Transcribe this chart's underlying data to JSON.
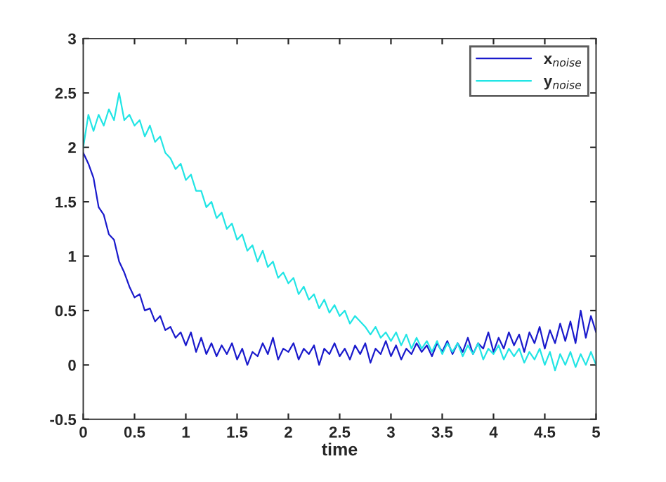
{
  "chart_data": {
    "type": "line",
    "xlabel": "time",
    "x": [
      0,
      0.05,
      0.1,
      0.15,
      0.2,
      0.25,
      0.3,
      0.35,
      0.4,
      0.45,
      0.5,
      0.55,
      0.6,
      0.65,
      0.7,
      0.75,
      0.8,
      0.85,
      0.9,
      0.95,
      1,
      1.05,
      1.1,
      1.15,
      1.2,
      1.25,
      1.3,
      1.35,
      1.4,
      1.45,
      1.5,
      1.55,
      1.6,
      1.65,
      1.7,
      1.75,
      1.8,
      1.85,
      1.9,
      1.95,
      2,
      2.05,
      2.1,
      2.15,
      2.2,
      2.25,
      2.3,
      2.35,
      2.4,
      2.45,
      2.5,
      2.55,
      2.6,
      2.65,
      2.7,
      2.75,
      2.8,
      2.85,
      2.9,
      2.95,
      3,
      3.05,
      3.1,
      3.15,
      3.2,
      3.25,
      3.3,
      3.35,
      3.4,
      3.45,
      3.5,
      3.55,
      3.6,
      3.65,
      3.7,
      3.75,
      3.8,
      3.85,
      3.9,
      3.95,
      4,
      4.05,
      4.1,
      4.15,
      4.2,
      4.25,
      4.3,
      4.35,
      4.4,
      4.45,
      4.5,
      4.55,
      4.6,
      4.65,
      4.7,
      4.75,
      4.8,
      4.85,
      4.9,
      4.95,
      5
    ],
    "series": [
      {
        "name": "x$_{noise}$",
        "color": "#1a1acc",
        "values": [
          1.95,
          1.85,
          1.72,
          1.45,
          1.38,
          1.2,
          1.15,
          0.95,
          0.85,
          0.72,
          0.62,
          0.65,
          0.5,
          0.52,
          0.4,
          0.45,
          0.32,
          0.35,
          0.25,
          0.3,
          0.18,
          0.3,
          0.12,
          0.25,
          0.1,
          0.2,
          0.08,
          0.18,
          0.1,
          0.2,
          0.05,
          0.15,
          0.0,
          0.12,
          0.08,
          0.2,
          0.1,
          0.25,
          0.05,
          0.15,
          0.12,
          0.2,
          0.05,
          0.15,
          0.1,
          0.18,
          0.0,
          0.15,
          0.1,
          0.2,
          0.08,
          0.15,
          0.05,
          0.18,
          0.1,
          0.2,
          0.02,
          0.15,
          0.1,
          0.22,
          0.08,
          0.18,
          0.05,
          0.15,
          0.1,
          0.2,
          0.12,
          0.18,
          0.08,
          0.2,
          0.12,
          0.22,
          0.1,
          0.2,
          0.12,
          0.25,
          0.1,
          0.2,
          0.15,
          0.3,
          0.12,
          0.25,
          0.15,
          0.3,
          0.18,
          0.28,
          0.12,
          0.3,
          0.2,
          0.35,
          0.15,
          0.32,
          0.2,
          0.38,
          0.22,
          0.4,
          0.2,
          0.5,
          0.25,
          0.45,
          0.3
        ]
      },
      {
        "name": "y$_{noise}$",
        "color": "#22e5e5",
        "values": [
          2.0,
          2.3,
          2.15,
          2.3,
          2.2,
          2.35,
          2.25,
          2.5,
          2.25,
          2.3,
          2.2,
          2.25,
          2.1,
          2.2,
          2.05,
          2.1,
          1.95,
          1.9,
          1.8,
          1.85,
          1.7,
          1.75,
          1.6,
          1.6,
          1.45,
          1.5,
          1.35,
          1.4,
          1.25,
          1.3,
          1.15,
          1.2,
          1.05,
          1.1,
          0.95,
          1.05,
          0.9,
          0.95,
          0.8,
          0.85,
          0.75,
          0.8,
          0.65,
          0.72,
          0.6,
          0.65,
          0.52,
          0.6,
          0.48,
          0.55,
          0.45,
          0.5,
          0.38,
          0.45,
          0.4,
          0.35,
          0.28,
          0.35,
          0.25,
          0.3,
          0.22,
          0.3,
          0.18,
          0.28,
          0.15,
          0.25,
          0.15,
          0.22,
          0.12,
          0.22,
          0.1,
          0.2,
          0.12,
          0.2,
          0.08,
          0.18,
          0.1,
          0.2,
          0.05,
          0.15,
          0.1,
          0.18,
          0.05,
          0.15,
          0.08,
          0.15,
          0.02,
          0.12,
          0.05,
          0.15,
          0.0,
          0.12,
          -0.05,
          0.1,
          0.0,
          0.12,
          -0.02,
          0.1,
          0.0,
          0.12,
          0.0
        ]
      }
    ],
    "xlim": [
      0,
      5
    ],
    "ylim": [
      -0.5,
      3
    ],
    "xticks": [
      0,
      0.5,
      1,
      1.5,
      2,
      2.5,
      3,
      3.5,
      4,
      4.5,
      5
    ],
    "yticks": [
      -0.5,
      0,
      0.5,
      1,
      1.5,
      2,
      2.5,
      3
    ],
    "legend": "top right",
    "grid": false
  }
}
